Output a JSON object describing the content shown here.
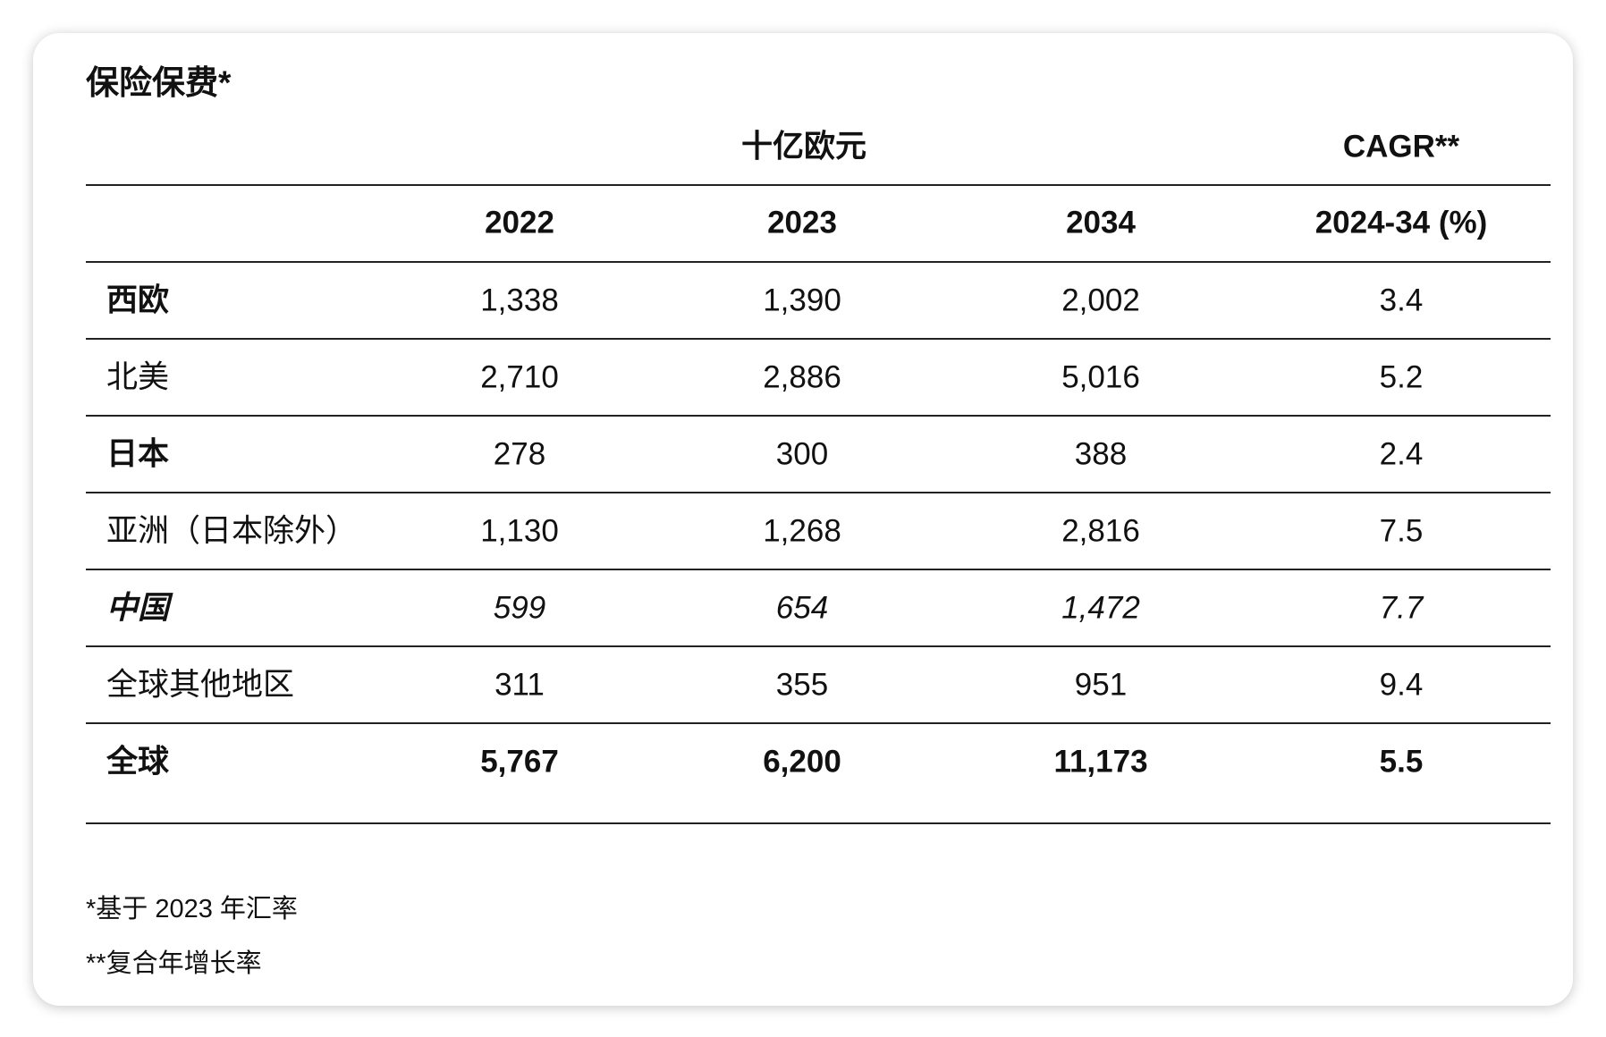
{
  "title": "保险保费*",
  "table": {
    "group_headers": [
      "十亿欧元",
      "CAGR**"
    ],
    "columns": [
      "2022",
      "2023",
      "2034",
      "2024-34 (%)"
    ],
    "rows": [
      [
        "西欧",
        "1,338",
        "1,390",
        "2,002",
        "3.4"
      ],
      [
        "北美",
        "2,710",
        "2,886",
        "5,016",
        "5.2"
      ],
      [
        "日本",
        "278",
        "300",
        "388",
        "2.4"
      ],
      [
        "亚洲（日本除外）",
        "1,130",
        "1,268",
        "2,816",
        "7.5"
      ],
      [
        "中国",
        "599",
        "654",
        "1,472",
        "7.7"
      ],
      [
        "全球其他地区",
        "311",
        "355",
        "951",
        "9.4"
      ],
      [
        "全球",
        "5,767",
        "6,200",
        "11,173",
        "5.5"
      ]
    ]
  },
  "footnotes": [
    "*基于 2023 年汇率",
    "**复合年增长率"
  ]
}
